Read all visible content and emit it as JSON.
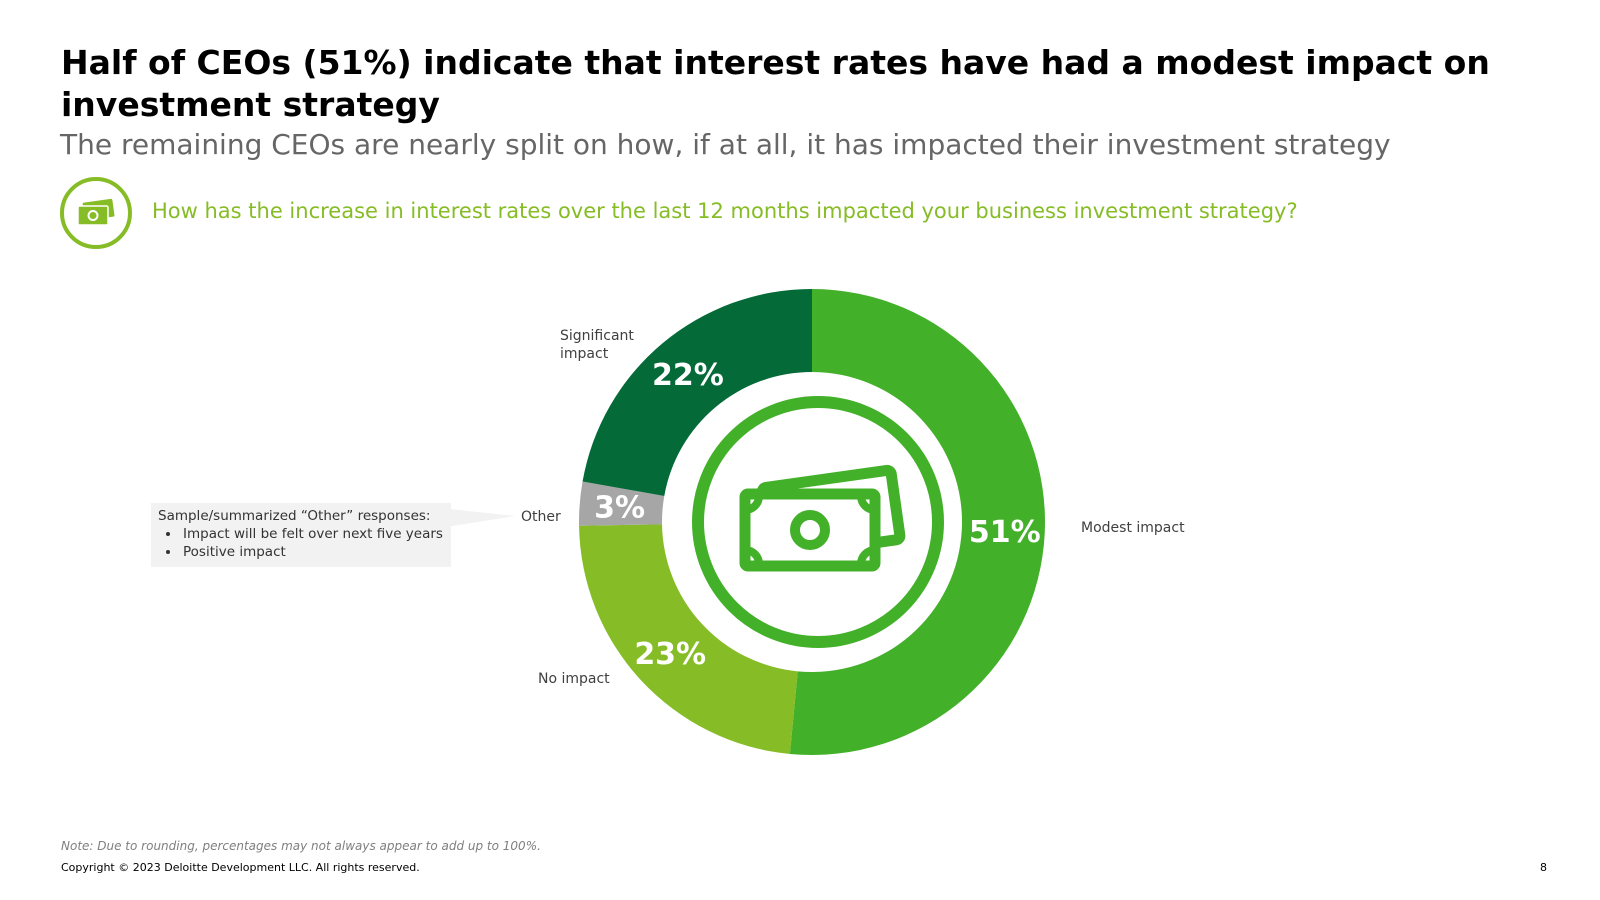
{
  "header": {
    "title": "Half of CEOs (51%) indicate that interest rates have had a modest impact on investment strategy",
    "subtitle": "The remaining CEOs are nearly split on how, if at all, it has impacted their investment strategy",
    "question": "How has the increase in interest rates over the last 12 months impacted your business investment strategy?",
    "question_icon": "money-bills-icon"
  },
  "chart_data": {
    "type": "pie",
    "variant": "donut",
    "categories": [
      "Modest impact",
      "No impact",
      "Other",
      "Significant impact"
    ],
    "values": [
      51,
      23,
      3,
      22
    ],
    "value_labels": [
      "51%",
      "23%",
      "3%",
      "22%"
    ],
    "colors": [
      "#43B02A",
      "#86BC25",
      "#A6A6A6",
      "#046A38"
    ],
    "center_icon": "money-bills-icon",
    "direction": "clockwise from top"
  },
  "callout": {
    "heading": "Sample/summarized “Other” responses:",
    "items": [
      "Impact will be felt over next five years",
      "Positive impact"
    ]
  },
  "footer": {
    "note": "Note: Due to rounding, percentages may not always appear to add up to 100%.",
    "copyright": "Copyright © 2023 Deloitte Development LLC. All rights reserved.",
    "page_number": "8"
  },
  "colors": {
    "accent_green": "#86BC25",
    "bright_green": "#43B02A",
    "dark_green": "#046A38",
    "gray": "#A6A6A6"
  }
}
